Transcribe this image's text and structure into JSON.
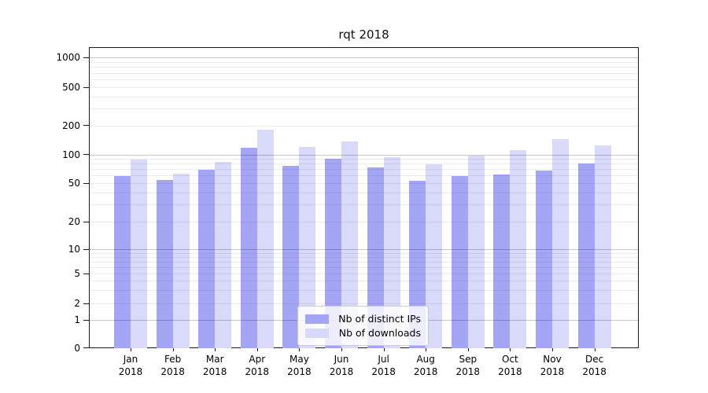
{
  "title": "rqt 2018",
  "chart_data": {
    "type": "bar",
    "title": "rqt 2018",
    "x_categories": [
      "Jan",
      "Feb",
      "Mar",
      "Apr",
      "May",
      "Jun",
      "Jul",
      "Aug",
      "Sep",
      "Oct",
      "Nov",
      "Dec"
    ],
    "x_year": "2018",
    "series": [
      {
        "name": "Nb of distinct IPs",
        "color": "#a5a5f6",
        "values": [
          61,
          55,
          70,
          120,
          77,
          93,
          75,
          54,
          60,
          63,
          69,
          82
        ]
      },
      {
        "name": "Nb of downloads",
        "color": "#d9d9f9",
        "values": [
          90,
          64,
          86,
          183,
          122,
          138,
          96,
          81,
          100,
          114,
          146,
          127
        ]
      }
    ],
    "y_ticks": [
      0,
      1,
      2,
      5,
      10,
      20,
      50,
      100,
      200,
      500,
      1000
    ],
    "y_scale": "symlog",
    "ylim": [
      0,
      1300
    ],
    "grid": true,
    "legend_position": "lower center"
  }
}
